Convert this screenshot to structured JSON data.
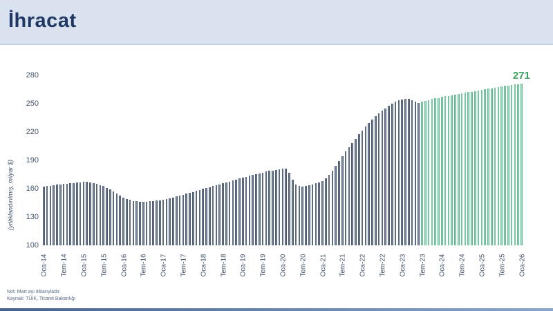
{
  "header": {
    "title": "İhracat"
  },
  "chart_data": {
    "type": "bar",
    "title": "İhracat",
    "ylabel": "(yıllıklandırılmış, milyar $)",
    "ylim": [
      100,
      280
    ],
    "y_ticks": [
      100,
      130,
      160,
      190,
      220,
      250,
      280
    ],
    "grid": false,
    "legend": "none",
    "x_tick_every": 6,
    "x_tick_labels": [
      "Oca-14",
      "Tem-14",
      "Oca-15",
      "Tem-15",
      "Oca-16",
      "Tem-16",
      "Oca-17",
      "Tem-17",
      "Oca-18",
      "Tem-18",
      "Oca-19",
      "Tem-19",
      "Oca-20",
      "Tem-20",
      "Oca-21",
      "Tem-21",
      "Oca-22",
      "Tem-22",
      "Oca-23",
      "Tem-23",
      "Oca-24",
      "Tem-24",
      "Oca-25",
      "Tem-25",
      "Oca-26"
    ],
    "end_label": "271",
    "series": [
      {
        "color_role": "actual",
        "values": [
          162.0,
          162.7,
          163.3,
          163.8,
          164.2,
          164.6,
          164.9,
          165.2,
          165.6,
          166.0,
          166.4,
          166.8,
          167.1,
          167.2,
          166.9,
          166.2,
          165.2,
          164.0,
          162.6,
          161.0,
          159.2,
          157.2,
          155.0,
          152.8,
          150.8,
          149.2,
          148.0,
          147.2,
          146.7,
          146.4,
          146.3,
          146.4,
          146.6,
          146.9,
          147.3,
          147.8,
          148.4,
          149.1,
          149.9,
          150.8,
          151.7,
          152.7,
          153.7,
          154.7,
          155.7,
          156.7,
          157.7,
          158.7,
          159.7,
          160.7,
          161.7,
          162.7,
          163.7,
          164.7,
          165.7,
          166.7,
          167.7,
          168.7,
          169.7,
          170.7,
          171.7,
          172.7,
          173.7,
          174.6,
          175.5,
          176.4,
          177.2,
          178.0,
          178.7,
          179.3,
          179.9,
          180.4,
          180.9,
          181.3,
          176.5,
          169.5,
          164.5,
          163.0,
          162.5,
          163.0,
          163.8,
          164.7,
          165.6,
          166.6,
          168.0,
          171.0,
          174.5,
          179.0,
          184.0,
          189.5,
          194.5,
          199.5,
          204.0,
          208.5,
          213.0,
          217.5,
          221.5,
          225.5,
          229.5,
          233.0,
          236.5,
          239.5,
          242.5,
          245.0,
          247.5,
          250.0,
          252.0,
          253.5,
          254.5,
          255.2,
          255.0,
          254.0,
          252.0,
          250.5
        ]
      },
      {
        "color_role": "forecast",
        "values": [
          252.5,
          253.2,
          254.0,
          254.8,
          255.5,
          256.2,
          257.0,
          257.7,
          258.4,
          259.1,
          259.8,
          260.4,
          261.0,
          261.6,
          262.2,
          262.8,
          263.4,
          264.0,
          264.6,
          265.2,
          265.8,
          266.4,
          267.0,
          267.6,
          268.2,
          268.7,
          269.2,
          269.7,
          270.2,
          270.6,
          271.0
        ]
      }
    ]
  },
  "note": {
    "line1": "Not: Mart ayı itibarıyladır.",
    "line2": "Kaynak: TÜİK, Ticaret Bakanlığı"
  },
  "colors": {
    "header_bg": "#DAE2F0",
    "title": "#1F3864",
    "actual_bar": "#44546A",
    "forecast_bar": "#5BBD8C",
    "end_label_green": "#3BA164",
    "axis_text": "#44546A",
    "bottom_strip": "#46628F"
  }
}
